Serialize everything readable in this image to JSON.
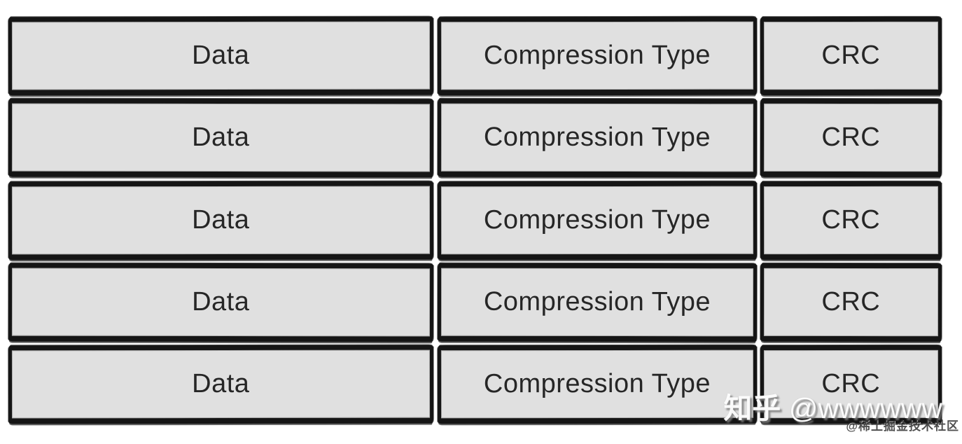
{
  "diagram": {
    "description": "Stacked record-block diagram: five identical rows, each split into Data, Compression Type and CRC fields",
    "column_labels": [
      "Data",
      "Compression Type",
      "CRC"
    ],
    "rows": [
      {
        "cells": [
          "Data",
          "Compression Type",
          "CRC"
        ]
      },
      {
        "cells": [
          "Data",
          "Compression Type",
          "CRC"
        ]
      },
      {
        "cells": [
          "Data",
          "Compression Type",
          "CRC"
        ]
      },
      {
        "cells": [
          "Data",
          "Compression Type",
          "CRC"
        ]
      },
      {
        "cells": [
          "Data",
          "Compression Type",
          "CRC"
        ]
      }
    ]
  },
  "watermarks": {
    "zhihu_brand": "知乎",
    "zhihu_handle": "@wwwwww",
    "juejin": "@稀土掘金技术社区"
  },
  "colors": {
    "background": "#ffffff",
    "cell_fill": "#e0e0e0",
    "border": "#151515",
    "cell_text": "#262626"
  }
}
